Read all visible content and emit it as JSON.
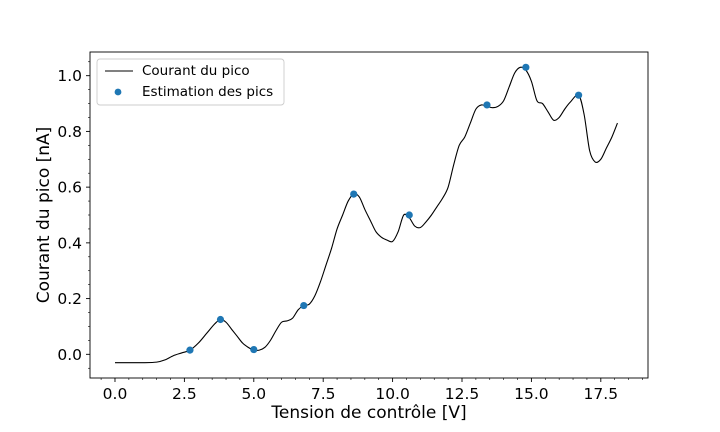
{
  "chart_data": {
    "type": "line",
    "title": "",
    "xlabel": "Tension de contrôle [V]",
    "ylabel": "Courant du pico [nA]",
    "xlim": [
      -0.9,
      19.2
    ],
    "ylim": [
      -0.085,
      1.085
    ],
    "xticks": [
      0.0,
      2.5,
      5.0,
      7.5,
      10.0,
      12.5,
      15.0,
      17.5
    ],
    "xtick_labels": [
      "0.0",
      "2.5",
      "5.0",
      "7.5",
      "10.0",
      "12.5",
      "15.0",
      "17.5"
    ],
    "yticks": [
      0.0,
      0.2,
      0.4,
      0.6,
      0.8,
      1.0
    ],
    "ytick_labels": [
      "0.0",
      "0.2",
      "0.4",
      "0.6",
      "0.8",
      "1.0"
    ],
    "grid": false,
    "legend_position": "top-left",
    "series": [
      {
        "name": "Courant du pico",
        "kind": "line",
        "color": "#000000",
        "x": [
          0.0,
          0.5,
          1.0,
          1.5,
          1.8,
          2.1,
          2.4,
          2.7,
          3.0,
          3.3,
          3.6,
          3.8,
          4.0,
          4.2,
          4.4,
          4.6,
          4.8,
          5.0,
          5.2,
          5.4,
          5.6,
          5.8,
          6.0,
          6.2,
          6.4,
          6.6,
          6.8,
          7.0,
          7.2,
          7.4,
          7.6,
          7.8,
          8.0,
          8.2,
          8.4,
          8.6,
          8.8,
          9.0,
          9.2,
          9.4,
          9.6,
          9.8,
          10.0,
          10.2,
          10.4,
          10.6,
          10.8,
          11.0,
          11.2,
          11.4,
          11.6,
          11.8,
          12.0,
          12.2,
          12.4,
          12.6,
          12.8,
          13.0,
          13.2,
          13.4,
          13.6,
          13.8,
          14.0,
          14.2,
          14.4,
          14.6,
          14.8,
          15.0,
          15.2,
          15.4,
          15.6,
          15.8,
          16.0,
          16.2,
          16.4,
          16.7,
          16.9,
          17.1,
          17.3,
          17.5,
          17.7,
          17.9,
          18.1
        ],
        "y": [
          -0.03,
          -0.03,
          -0.03,
          -0.028,
          -0.02,
          -0.005,
          0.005,
          0.015,
          0.04,
          0.075,
          0.11,
          0.125,
          0.115,
          0.09,
          0.065,
          0.04,
          0.025,
          0.015,
          0.015,
          0.025,
          0.05,
          0.085,
          0.115,
          0.12,
          0.13,
          0.16,
          0.175,
          0.18,
          0.21,
          0.26,
          0.32,
          0.38,
          0.45,
          0.5,
          0.55,
          0.575,
          0.565,
          0.52,
          0.48,
          0.44,
          0.42,
          0.41,
          0.405,
          0.44,
          0.5,
          0.49,
          0.46,
          0.455,
          0.475,
          0.5,
          0.53,
          0.56,
          0.6,
          0.68,
          0.75,
          0.78,
          0.83,
          0.88,
          0.895,
          0.89,
          0.885,
          0.89,
          0.91,
          0.96,
          1.01,
          1.03,
          1.02,
          0.98,
          0.91,
          0.9,
          0.87,
          0.84,
          0.85,
          0.88,
          0.905,
          0.93,
          0.86,
          0.73,
          0.69,
          0.7,
          0.74,
          0.78,
          0.83
        ]
      },
      {
        "name": "Estimation des pics",
        "kind": "scatter",
        "color": "#1f77b4",
        "x": [
          2.7,
          3.8,
          5.0,
          6.8,
          8.6,
          10.6,
          13.4,
          14.8,
          16.7
        ],
        "y": [
          0.015,
          0.125,
          0.017,
          0.175,
          0.575,
          0.5,
          0.895,
          1.03,
          0.93
        ]
      }
    ]
  }
}
